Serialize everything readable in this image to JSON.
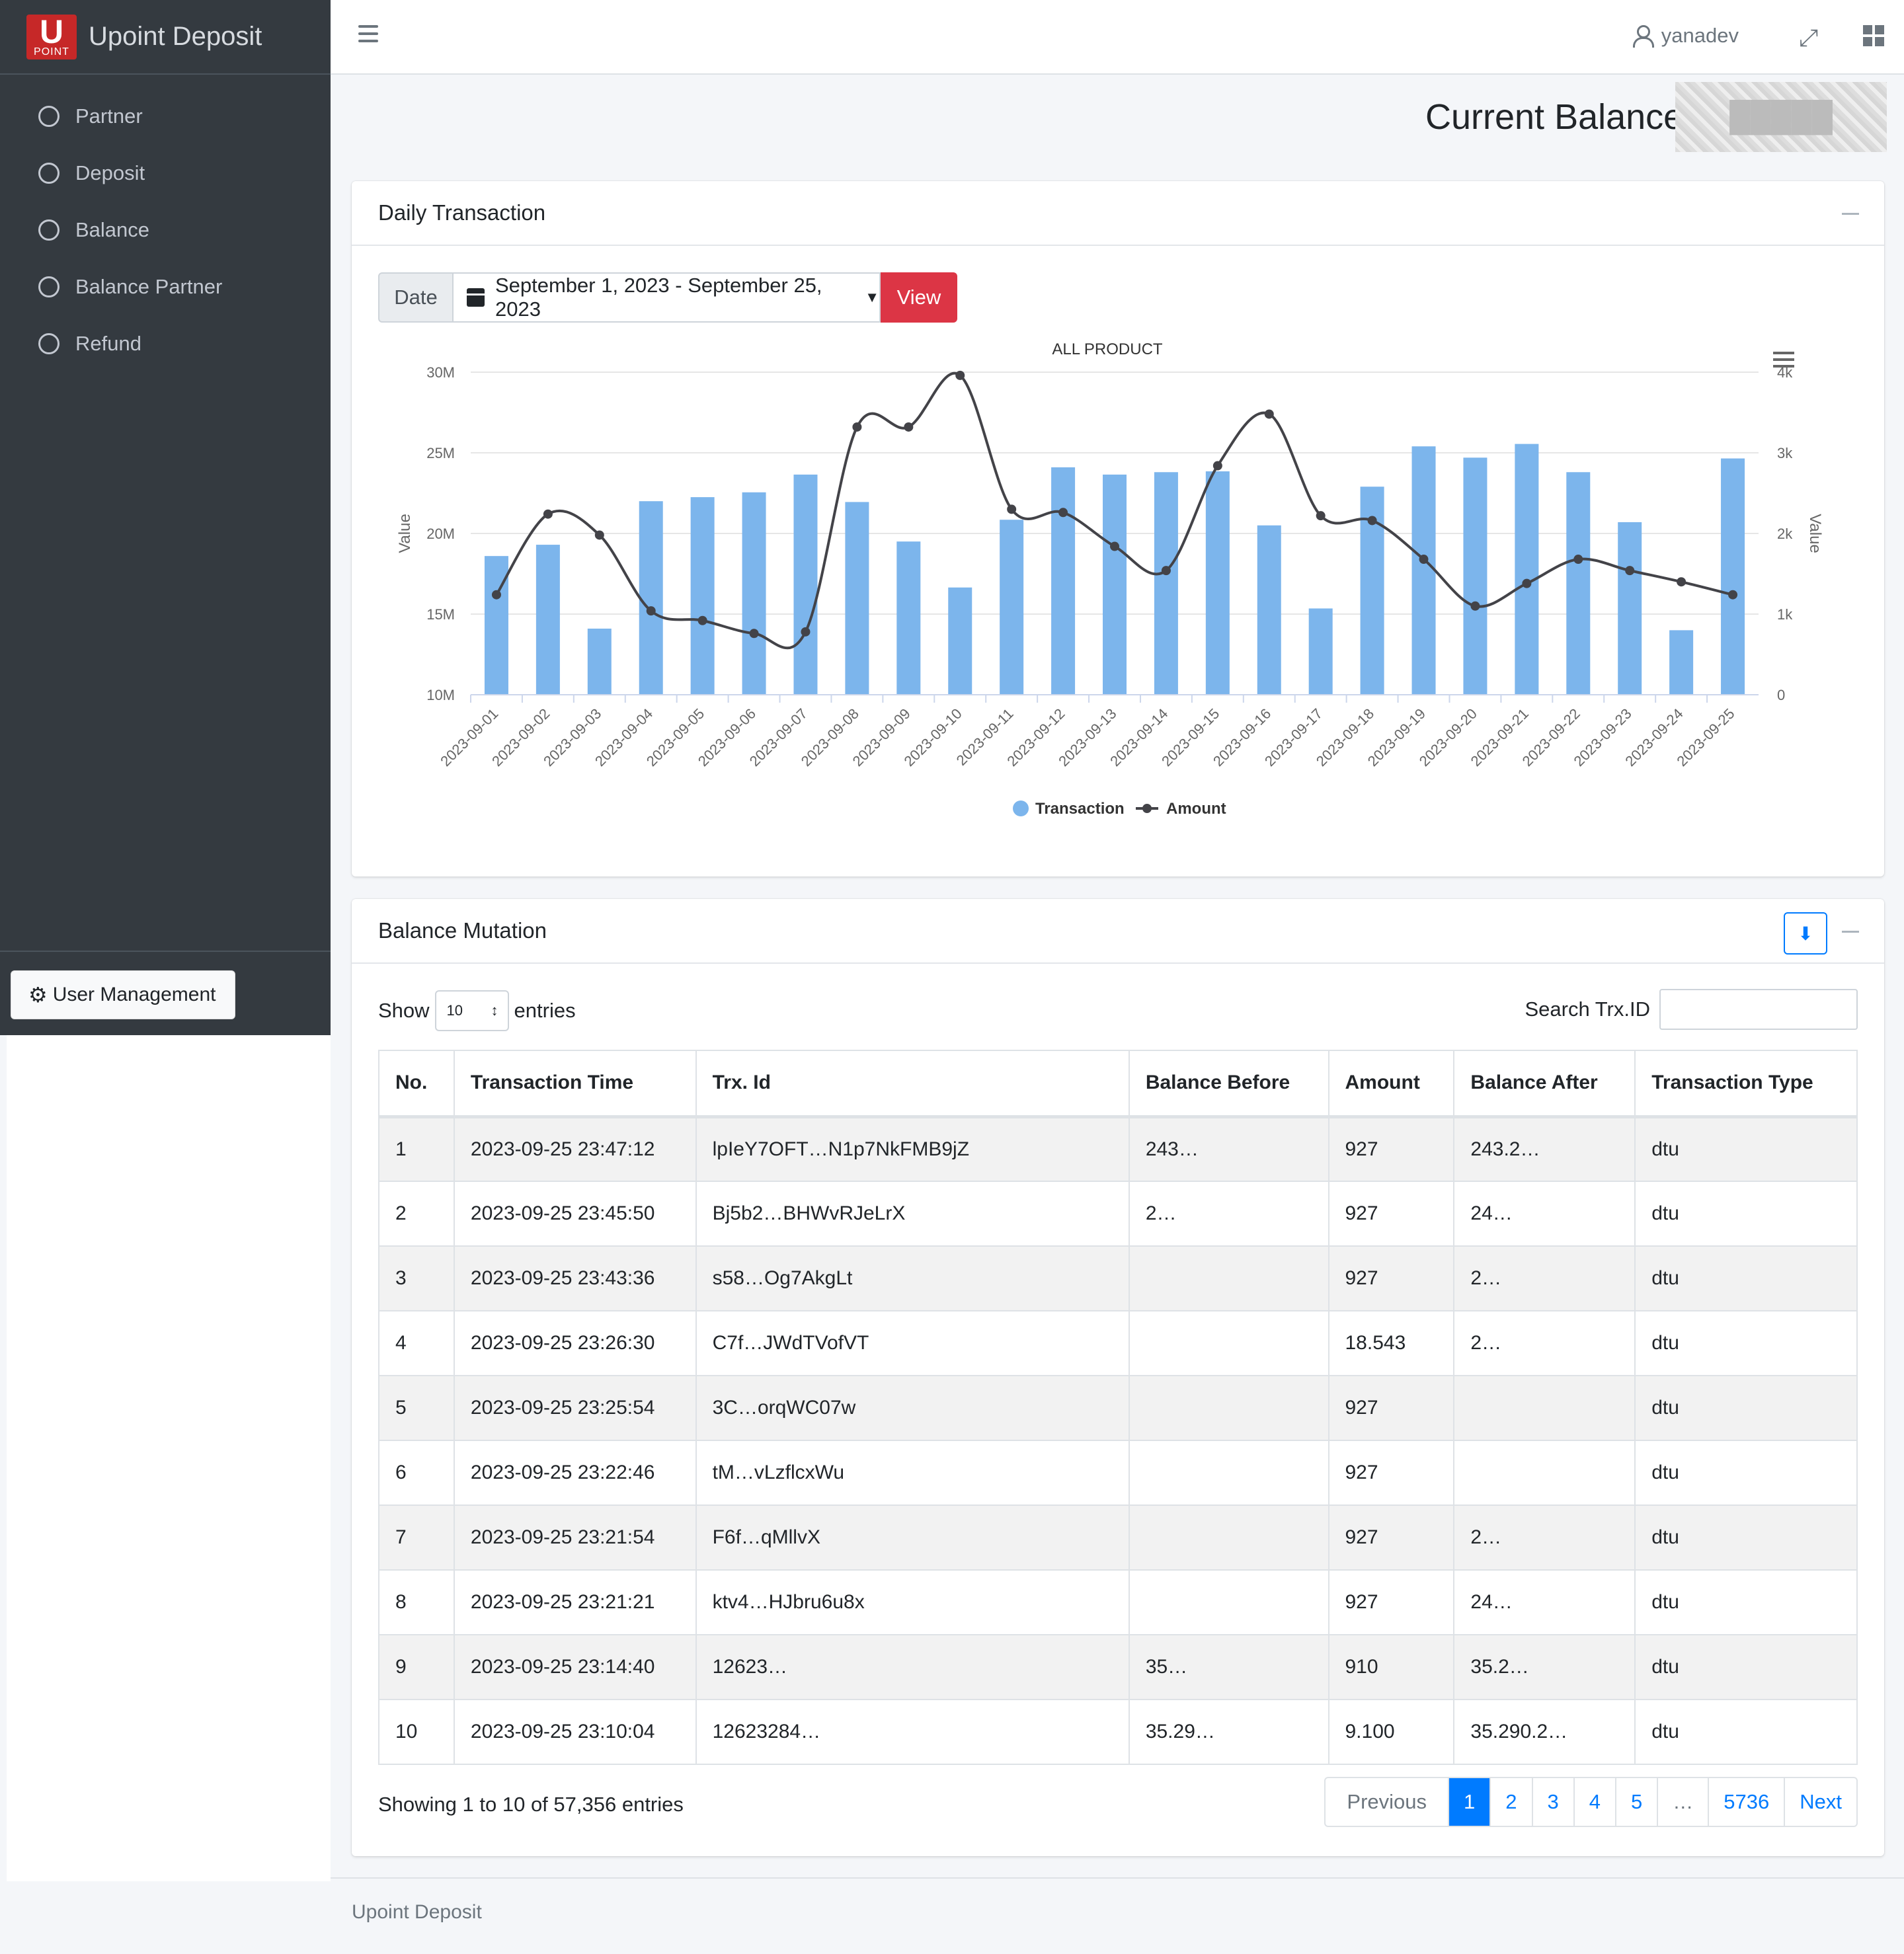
{
  "app": {
    "brand_logo_letter": "U",
    "brand_logo_sub": "POINT",
    "brand_name": "Upoint Deposit"
  },
  "sidebar": {
    "items": [
      {
        "label": "Partner"
      },
      {
        "label": "Deposit"
      },
      {
        "label": "Balance"
      },
      {
        "label": "Balance Partner"
      },
      {
        "label": "Refund"
      }
    ],
    "user_management_label": "User Management"
  },
  "topbar": {
    "username": "yanadev"
  },
  "balance": {
    "title": "Current Balance",
    "value_redacted": "█████"
  },
  "daily_card": {
    "title": "Daily Transaction",
    "date_label": "Date",
    "date_range": "September 1, 2023 - September 25, 2023",
    "view_label": "View"
  },
  "colors": {
    "bar": "#7cb5ec",
    "line": "#434348",
    "primary": "#007bff",
    "danger": "#dc3545",
    "sidebar": "#343a40"
  },
  "chart_data": {
    "type": "bar",
    "title": "ALL PRODUCT",
    "categories": [
      "2023-09-01",
      "2023-09-02",
      "2023-09-03",
      "2023-09-04",
      "2023-09-05",
      "2023-09-06",
      "2023-09-07",
      "2023-09-08",
      "2023-09-09",
      "2023-09-10",
      "2023-09-11",
      "2023-09-12",
      "2023-09-13",
      "2023-09-14",
      "2023-09-15",
      "2023-09-16",
      "2023-09-17",
      "2023-09-18",
      "2023-09-19",
      "2023-09-20",
      "2023-09-21",
      "2023-09-22",
      "2023-09-23",
      "2023-09-24",
      "2023-09-25"
    ],
    "left_axis": {
      "label": "Value",
      "ticks": [
        "10M",
        "15M",
        "20M",
        "25M",
        "30M"
      ],
      "range": [
        10000000,
        30000000
      ]
    },
    "right_axis": {
      "label": "Value",
      "ticks": [
        "0",
        "1k",
        "2k",
        "3k",
        "4k"
      ],
      "range": [
        0,
        4000
      ]
    },
    "legend_position": "bottom",
    "grid": true,
    "series": [
      {
        "name": "Transaction",
        "type": "column",
        "axis": "right",
        "values": [
          1720,
          1860,
          820,
          2400,
          2450,
          2510,
          2730,
          2390,
          1900,
          1330,
          2170,
          2820,
          2730,
          2760,
          2770,
          2100,
          1070,
          2580,
          3080,
          2940,
          3110,
          2760,
          2140,
          800,
          2930
        ]
      },
      {
        "name": "Amount",
        "type": "spline",
        "axis": "left",
        "values": [
          16200000,
          21200000,
          19900000,
          15200000,
          14600000,
          13800000,
          13900000,
          26600000,
          26600000,
          29800000,
          21500000,
          21300000,
          19200000,
          17700000,
          24200000,
          27400000,
          21100000,
          20800000,
          18400000,
          15500000,
          16900000,
          18400000,
          17700000,
          17000000,
          16200000
        ]
      }
    ]
  },
  "mutation_card": {
    "title": "Balance Mutation",
    "show_label": "Show",
    "entries_value": "10",
    "entries_label": "entries",
    "search_label": "Search Trx.ID",
    "columns": [
      "No.",
      "Transaction Time",
      "Trx. Id",
      "Balance Before",
      "Amount",
      "Balance After",
      "Transaction Type"
    ],
    "rows": [
      [
        "1",
        "2023-09-25 23:47:12",
        "lpIeY7OFT…N1p7NkFMB9jZ",
        "243…",
        "927",
        "243.2…",
        "dtu"
      ],
      [
        "2",
        "2023-09-25 23:45:50",
        "Bj5b2…BHWvRJeLrX",
        "2…",
        "927",
        "24…",
        "dtu"
      ],
      [
        "3",
        "2023-09-25 23:43:36",
        "s58…Og7AkgLt",
        "",
        "927",
        "2…",
        "dtu"
      ],
      [
        "4",
        "2023-09-25 23:26:30",
        "C7f…JWdTVofVT",
        "",
        "18.543",
        "2…",
        "dtu"
      ],
      [
        "5",
        "2023-09-25 23:25:54",
        "3C…orqWC07w",
        "",
        "927",
        "",
        "dtu"
      ],
      [
        "6",
        "2023-09-25 23:22:46",
        "tM…vLzflcxWu",
        "",
        "927",
        "",
        "dtu"
      ],
      [
        "7",
        "2023-09-25 23:21:54",
        "F6f…qMllvX",
        "",
        "927",
        "2…",
        "dtu"
      ],
      [
        "8",
        "2023-09-25 23:21:21",
        "ktv4…HJbru6u8x",
        "",
        "927",
        "24…",
        "dtu"
      ],
      [
        "9",
        "2023-09-25 23:14:40",
        "12623…",
        "35…",
        "910",
        "35.2…",
        "dtu"
      ],
      [
        "10",
        "2023-09-25 23:10:04",
        "12623284…",
        "35.29…",
        "9.100",
        "35.290.2…",
        "dtu"
      ]
    ],
    "info": "Showing 1 to 10 of 57,356 entries",
    "pagination": [
      "Previous",
      "1",
      "2",
      "3",
      "4",
      "5",
      "…",
      "5736",
      "Next"
    ],
    "active_page": "1"
  },
  "footer": {
    "text": "Upoint Deposit"
  }
}
